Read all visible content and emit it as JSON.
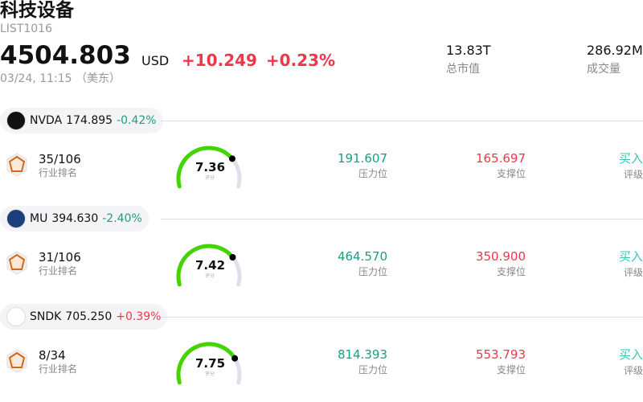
{
  "header": {
    "title": "科技设备",
    "code": "LIST1016",
    "price": "4504.803",
    "currency": "USD",
    "change": "+10.249",
    "change_pct": "+0.23%",
    "time": "03/24, 11:15 （美东）"
  },
  "stats": [
    {
      "value": "13.83T",
      "label": "总市值"
    },
    {
      "value": "286.92M",
      "label": "成交量"
    }
  ],
  "colors": {
    "up": "#f0364a",
    "down": "#1a9e7f",
    "gauge": "#44d400",
    "buy": "#3cc3b6"
  },
  "stocks": [
    {
      "symbol": "NVDA",
      "price": "174.895",
      "change_pct": "-0.42%",
      "direction": "down",
      "logo_color": "#111",
      "rank": "35/106",
      "rank_label": "行业排名",
      "score": 7.36,
      "score_text": "7.36",
      "score_label": "评分",
      "resistance": "191.607",
      "resistance_label": "压力位",
      "support": "165.697",
      "support_label": "支撑位",
      "rating": "买入",
      "rating_label": "评级"
    },
    {
      "symbol": "MU",
      "price": "394.630",
      "change_pct": "-2.40%",
      "direction": "down",
      "logo_color": "#1b3f7a",
      "rank": "31/106",
      "rank_label": "行业排名",
      "score": 7.42,
      "score_text": "7.42",
      "score_label": "评分",
      "resistance": "464.570",
      "resistance_label": "压力位",
      "support": "350.900",
      "support_label": "支撑位",
      "rating": "买入",
      "rating_label": "评级"
    },
    {
      "symbol": "SNDK",
      "price": "705.250",
      "change_pct": "+0.39%",
      "direction": "up",
      "logo_color": "#ffffff",
      "rank": "8/34",
      "rank_label": "行业排名",
      "score": 7.75,
      "score_text": "7.75",
      "score_label": "评分",
      "resistance": "814.393",
      "resistance_label": "压力位",
      "support": "553.793",
      "support_label": "支撑位",
      "rating": "买入",
      "rating_label": "评级"
    }
  ]
}
